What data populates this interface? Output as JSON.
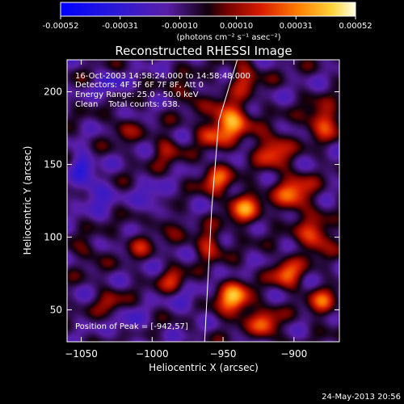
{
  "chart_data": {
    "type": "heatmap",
    "title": "Reconstructed RHESSI Image",
    "xlabel": "Heliocentric X (arcsec)",
    "ylabel": "Heliocentric Y (arcsec)",
    "xlim": [
      -1060,
      -868
    ],
    "ylim": [
      28,
      222
    ],
    "x_ticks": [
      -1050,
      -1000,
      -950,
      -900
    ],
    "y_ticks": [
      50,
      100,
      150,
      200
    ],
    "colorbar": {
      "min": -0.00052,
      "max": 0.00052,
      "ticks": [
        "-0.00052",
        "-0.00031",
        "-0.00010",
        "0.00010",
        "0.00031",
        "0.00052"
      ],
      "tick_values": [
        -0.00052,
        -0.00031,
        -0.0001,
        0.0001,
        0.00031,
        0.00052
      ],
      "label": "(photons cm⁻² s⁻¹ asec⁻²)"
    },
    "annotations": [
      "16-Oct-2003 14:58:24.000 to 14:58:48.000",
      "Detectors: 4F 5F 6F 7F 8F, Att 0",
      "Energy Range: 25.0 - 50.0 keV",
      "Clean    Total counts: 638."
    ],
    "peak_label": "Position of Peak = [-942,57]",
    "limb": [
      {
        "x": -940,
        "y": 222
      },
      {
        "x": -953,
        "y": 180
      },
      {
        "x": -958,
        "y": 120
      },
      {
        "x": -963,
        "y": 28
      }
    ],
    "sources": [
      {
        "x": -945,
        "y": 180,
        "sigma": 9,
        "amp": 1.0
      },
      {
        "x": -942,
        "y": 57,
        "sigma": 8,
        "amp": 1.0
      },
      {
        "x": -955,
        "y": 140,
        "sigma": 7,
        "amp": 0.7
      },
      {
        "x": -935,
        "y": 120,
        "sigma": 8,
        "amp": 0.75
      },
      {
        "x": -915,
        "y": 160,
        "sigma": 8,
        "amp": 0.7
      },
      {
        "x": -900,
        "y": 130,
        "sigma": 9,
        "amp": 0.75
      },
      {
        "x": -880,
        "y": 180,
        "sigma": 8,
        "amp": 0.7
      },
      {
        "x": -885,
        "y": 100,
        "sigma": 8,
        "amp": 0.7
      },
      {
        "x": -905,
        "y": 75,
        "sigma": 7,
        "amp": 0.75
      },
      {
        "x": -880,
        "y": 55,
        "sigma": 7,
        "amp": 0.6
      },
      {
        "x": -920,
        "y": 40,
        "sigma": 7,
        "amp": 0.7
      },
      {
        "x": -960,
        "y": 95,
        "sigma": 7,
        "amp": 0.55
      },
      {
        "x": -985,
        "y": 70,
        "sigma": 6,
        "amp": 0.5
      },
      {
        "x": -1010,
        "y": 95,
        "sigma": 6,
        "amp": 0.4
      },
      {
        "x": -1030,
        "y": 55,
        "sigma": 6,
        "amp": 0.4
      },
      {
        "x": -990,
        "y": 160,
        "sigma": 7,
        "amp": 0.4
      },
      {
        "x": -1020,
        "y": 175,
        "sigma": 6,
        "amp": 0.35
      },
      {
        "x": -975,
        "y": 200,
        "sigma": 6,
        "amp": 0.4
      },
      {
        "x": -935,
        "y": 210,
        "sigma": 7,
        "amp": 0.55
      },
      {
        "x": -1040,
        "y": 130,
        "sigma": 7,
        "amp": -0.45
      },
      {
        "x": -1050,
        "y": 150,
        "sigma": 6,
        "amp": -0.5
      },
      {
        "x": -1000,
        "y": 125,
        "sigma": 7,
        "amp": -0.35
      },
      {
        "x": -1030,
        "y": 205,
        "sigma": 6,
        "amp": -0.35
      },
      {
        "x": -975,
        "y": 55,
        "sigma": 6,
        "amp": -0.3
      },
      {
        "x": -1015,
        "y": 40,
        "sigma": 6,
        "amp": -0.3
      },
      {
        "x": -990,
        "y": 110,
        "sigma": 6,
        "amp": 0.35
      },
      {
        "x": -1045,
        "y": 90,
        "sigma": 6,
        "amp": 0.3
      },
      {
        "x": -960,
        "y": 170,
        "sigma": 6,
        "amp": 0.5
      }
    ]
  },
  "footer_date": "24-May-2013 20:56"
}
